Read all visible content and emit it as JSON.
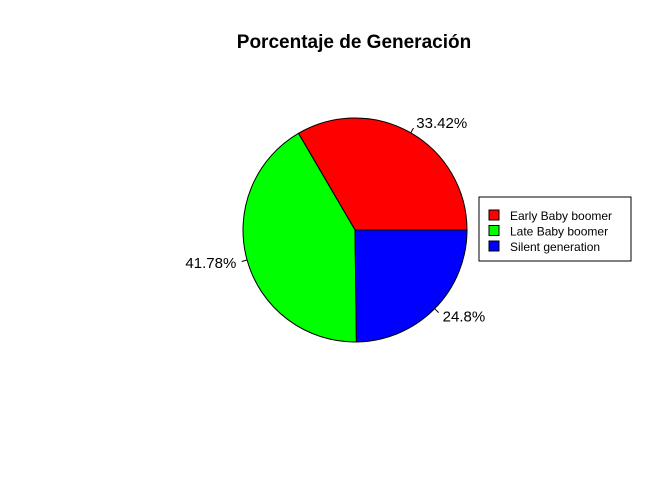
{
  "chart_data": {
    "type": "pie",
    "title": "Porcentaje de Generación",
    "slices": [
      {
        "name": "Early Baby boomer",
        "value": 33.42,
        "label": "33.42%",
        "color": "#ff0000"
      },
      {
        "name": "Late Baby boomer",
        "value": 41.78,
        "label": "41.78%",
        "color": "#00ff00"
      },
      {
        "name": "Silent generation",
        "value": 24.8,
        "label": "24.8%",
        "color": "#0000ff"
      }
    ],
    "legend": {
      "placement": "right",
      "entries": [
        "Early Baby boomer",
        "Late Baby boomer",
        "Silent generation"
      ]
    }
  }
}
